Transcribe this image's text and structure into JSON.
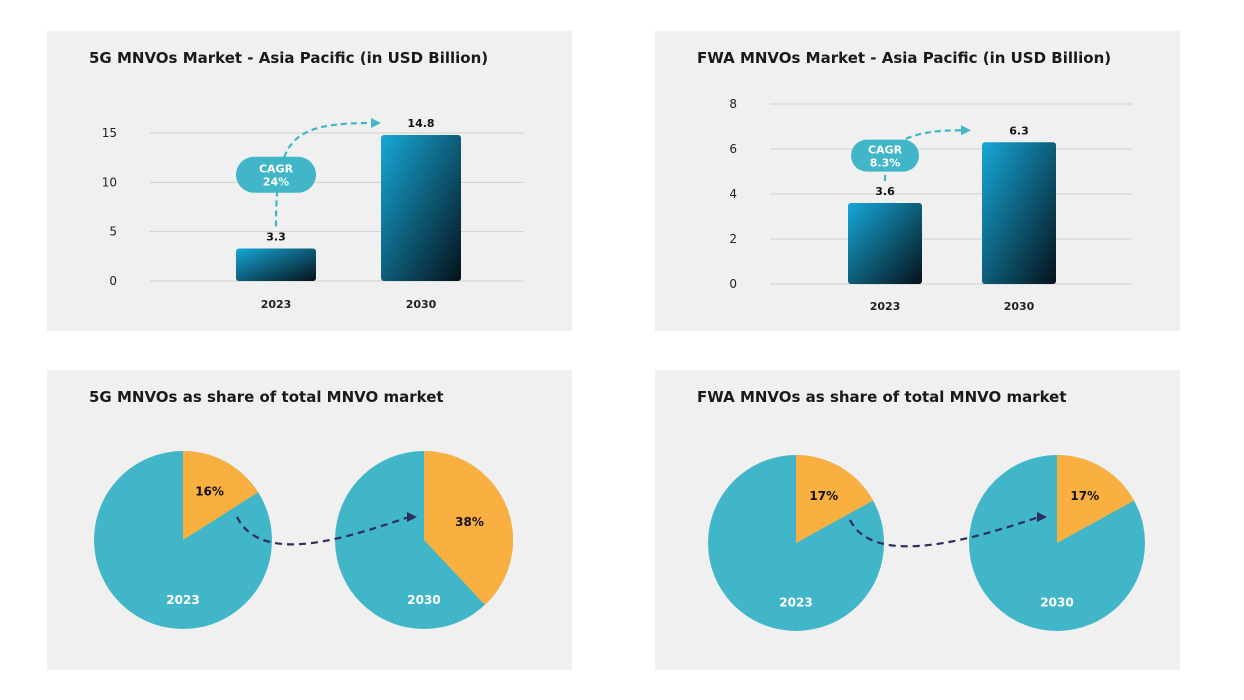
{
  "colors": {
    "panel_bg": "#f0f0f0",
    "bar_top": "#16a8d8",
    "bar_bottom": "#05121a",
    "pie_main": "#41b6c8",
    "pie_share": "#f9b041",
    "cagr_bubble": "#41b6c8",
    "arrow_dark": "#2b2f5e"
  },
  "chart_data": [
    {
      "type": "bar",
      "title": "5G MNVOs Market - Asia Pacific (in USD Billion)",
      "categories": [
        "2023",
        "2030"
      ],
      "values": [
        3.3,
        14.8
      ],
      "value_labels": [
        "3.3",
        "14.8"
      ],
      "yticks": [
        0,
        5,
        10,
        15
      ],
      "ylim": [
        0,
        15
      ],
      "grid": true,
      "annotation": {
        "line1": "CAGR",
        "line2": "24%"
      }
    },
    {
      "type": "bar",
      "title": "FWA MNVOs Market - Asia Pacific (in USD Billion)",
      "categories": [
        "2023",
        "2030"
      ],
      "values": [
        3.6,
        6.3
      ],
      "value_labels": [
        "3.6",
        "6.3"
      ],
      "yticks": [
        0,
        2,
        4,
        6,
        8
      ],
      "ylim": [
        0,
        8
      ],
      "grid": true,
      "annotation": {
        "line1": "CAGR",
        "line2": "8.3%"
      }
    },
    {
      "type": "pie",
      "title": "5G MNVOs as share of total MNVO market",
      "pies": [
        {
          "label": "2023",
          "share": 16,
          "share_label": "16%"
        },
        {
          "label": "2030",
          "share": 38,
          "share_label": "38%"
        }
      ]
    },
    {
      "type": "pie",
      "title": "FWA MNVOs as share of total MNVO market",
      "pies": [
        {
          "label": "2023",
          "share": 17,
          "share_label": "17%"
        },
        {
          "label": "2030",
          "share": 17,
          "share_label": "17%"
        }
      ]
    }
  ]
}
